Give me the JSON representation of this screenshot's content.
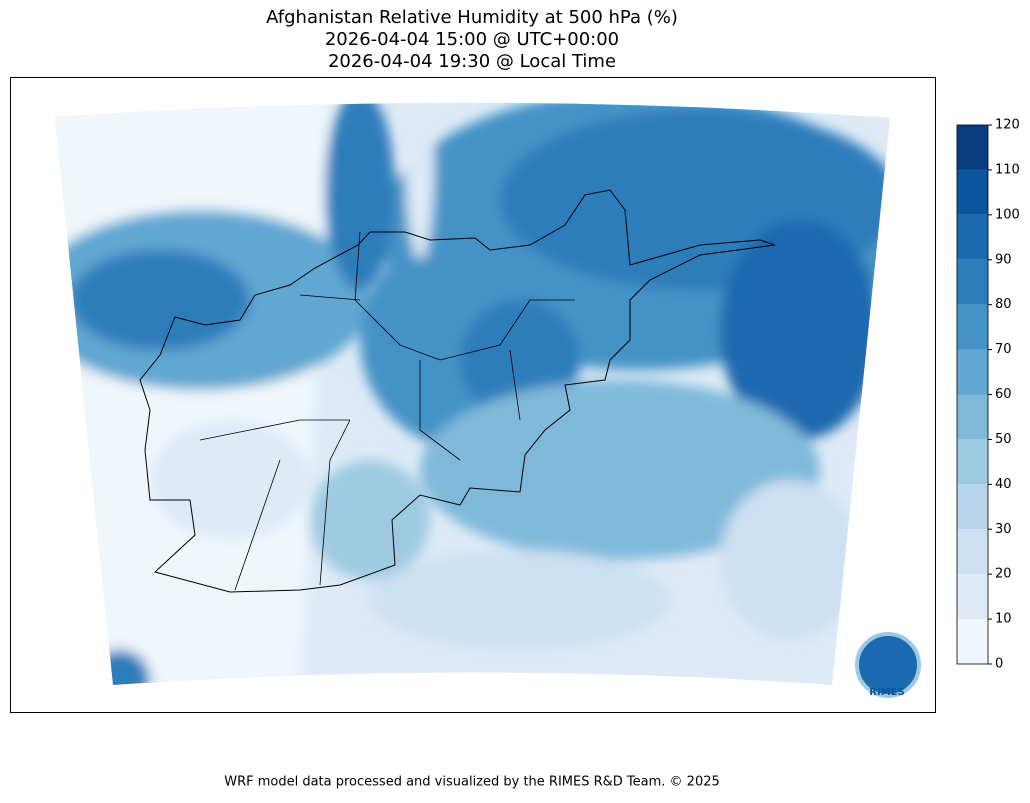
{
  "title": [
    "Afghanistan Relative Humidity at 500 hPa (%)",
    "2026-04-04 15:00 @ UTC+00:00",
    "2026-04-04 19:30 @ Local Time"
  ],
  "colorbar": {
    "ticks": [
      0,
      10,
      20,
      30,
      40,
      50,
      60,
      70,
      80,
      90,
      100,
      110,
      120
    ],
    "colors": [
      "#eff6fc",
      "#deebf7",
      "#cde0f1",
      "#b7d4ea",
      "#9ecae1",
      "#7fb9da",
      "#60a7d2",
      "#4493c6",
      "#2d7dbb",
      "#1b69af",
      "#0b559f",
      "#083d7f"
    ]
  },
  "logo": "RIMES",
  "footer": "WRF model data processed and visualized by the RIMES R&D Team. © 2025"
}
